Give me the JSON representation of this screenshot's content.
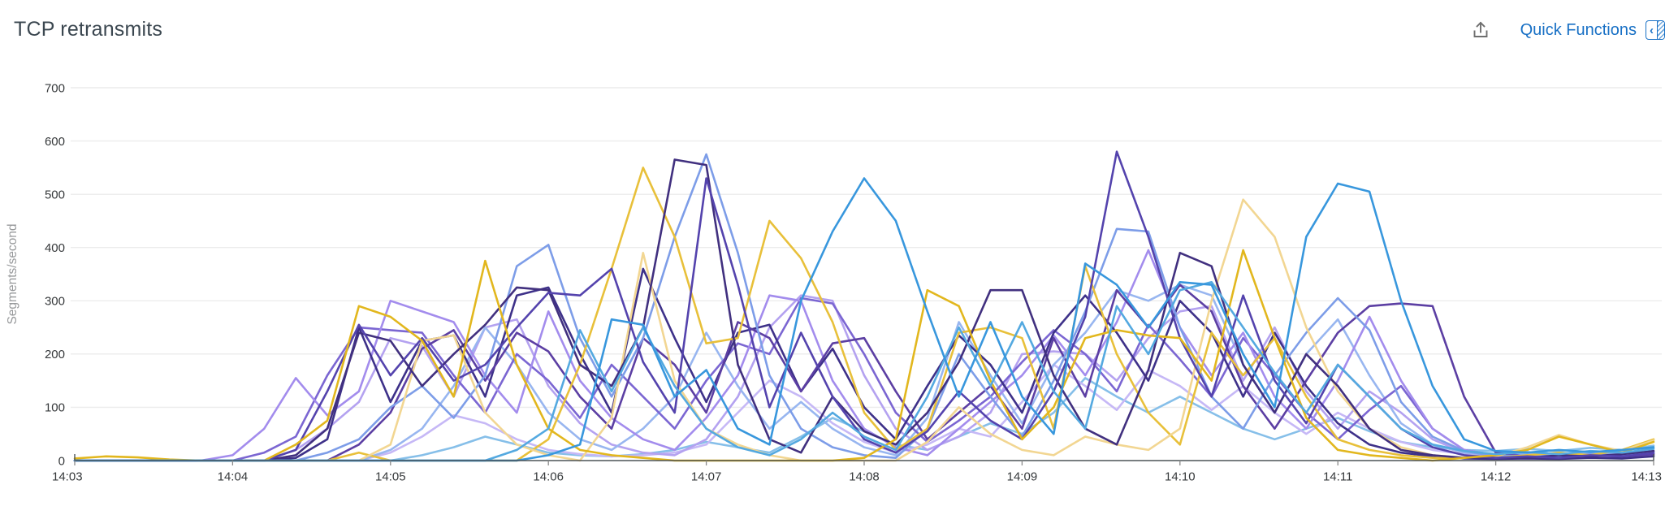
{
  "header": {
    "title": "TCP retransmits",
    "quick_functions_label": "Quick Functions"
  },
  "colors": {
    "accent_blue": "#1870c5",
    "title_text": "#3b4750",
    "tick_text": "#36393b",
    "axis_label_text": "#97999b",
    "gridline": "#ececec",
    "axis_line": "#4c5356",
    "export_icon": "#6e6e6e"
  },
  "chart_data": {
    "type": "line",
    "title": "TCP retransmits",
    "xlabel": "",
    "ylabel": "Segments/second",
    "ylim": [
      0,
      700
    ],
    "y_ticks": [
      0,
      100,
      200,
      300,
      400,
      500,
      600,
      700
    ],
    "x_tick_labels": [
      "14:03",
      "14:04",
      "14:05",
      "14:06",
      "14:07",
      "14:08",
      "14:09",
      "14:10",
      "14:11",
      "14:12",
      "14:13"
    ],
    "x_tick_minutes": [
      0,
      1,
      2,
      3,
      4,
      5,
      6,
      7,
      8,
      9,
      10
    ],
    "x_range_minutes": [
      0,
      10
    ],
    "x_step_minutes": 0.2,
    "grid": "horizontal",
    "legend_position": "none",
    "unit": "Segments/second",
    "series": [
      {
        "id": "sky-blue",
        "color": "#86bfe9",
        "values": [
          0,
          0,
          0,
          0,
          0,
          0,
          0,
          0,
          0,
          0,
          0,
          10,
          25,
          45,
          30,
          15,
          10,
          8,
          12,
          20,
          35,
          25,
          15,
          45,
          80,
          55,
          30,
          20,
          45,
          70,
          50,
          90,
          155,
          120,
          90,
          120,
          90,
          60,
          40,
          60,
          80,
          55,
          35,
          25,
          20,
          18,
          22,
          18,
          24,
          20,
          28
        ]
      },
      {
        "id": "lavender-pale",
        "color": "#c6b8f6",
        "values": [
          0,
          0,
          0,
          0,
          0,
          0,
          0,
          0,
          0,
          0,
          15,
          45,
          85,
          70,
          40,
          20,
          12,
          8,
          10,
          15,
          30,
          90,
          150,
          120,
          70,
          35,
          15,
          30,
          60,
          45,
          110,
          180,
          140,
          95,
          170,
          140,
          95,
          140,
          90,
          50,
          90,
          60,
          35,
          20,
          12,
          8,
          10,
          8,
          12,
          10,
          14
        ]
      },
      {
        "id": "lavender-light",
        "color": "#b4a2f0",
        "values": [
          0,
          0,
          0,
          0,
          0,
          0,
          0,
          20,
          60,
          110,
          230,
          215,
          120,
          250,
          265,
          140,
          70,
          30,
          15,
          10,
          40,
          120,
          250,
          310,
          300,
          160,
          60,
          20,
          45,
          90,
          200,
          205,
          200,
          150,
          230,
          280,
          290,
          150,
          250,
          130,
          60,
          130,
          90,
          40,
          15,
          8,
          6,
          5,
          8,
          6,
          9
        ]
      },
      {
        "id": "cornflower-light",
        "color": "#98b6f0",
        "values": [
          0,
          0,
          0,
          0,
          0,
          0,
          0,
          0,
          0,
          0,
          20,
          60,
          140,
          250,
          180,
          90,
          40,
          20,
          60,
          120,
          240,
          140,
          60,
          110,
          60,
          25,
          10,
          80,
          260,
          160,
          70,
          180,
          240,
          320,
          300,
          330,
          310,
          180,
          90,
          200,
          265,
          160,
          70,
          30,
          15,
          10,
          12,
          10,
          14,
          12,
          18
        ]
      },
      {
        "id": "purple-mid",
        "color": "#7b66d2",
        "values": [
          0,
          0,
          0,
          0,
          0,
          0,
          15,
          45,
          160,
          250,
          245,
          240,
          160,
          90,
          200,
          150,
          80,
          180,
          120,
          60,
          150,
          220,
          200,
          305,
          295,
          200,
          90,
          35,
          75,
          120,
          185,
          245,
          200,
          130,
          255,
          190,
          120,
          230,
          160,
          90,
          40,
          95,
          140,
          60,
          20,
          10,
          8,
          6,
          8,
          6,
          10
        ]
      },
      {
        "id": "lavender",
        "color": "#a38ced",
        "values": [
          0,
          0,
          0,
          0,
          0,
          10,
          60,
          155,
          85,
          130,
          300,
          280,
          260,
          160,
          90,
          280,
          150,
          80,
          40,
          20,
          80,
          160,
          310,
          300,
          150,
          60,
          25,
          10,
          60,
          110,
          160,
          235,
          160,
          260,
          395,
          250,
          160,
          240,
          120,
          60,
          150,
          270,
          150,
          60,
          20,
          10,
          6,
          8,
          6,
          10,
          12
        ]
      },
      {
        "id": "indigo-deep",
        "color": "#3e3189",
        "values": [
          0,
          0,
          0,
          0,
          0,
          0,
          0,
          5,
          40,
          250,
          110,
          225,
          235,
          120,
          310,
          325,
          200,
          90,
          360,
          230,
          110,
          240,
          255,
          130,
          210,
          100,
          40,
          140,
          235,
          180,
          90,
          240,
          310,
          240,
          150,
          300,
          240,
          120,
          240,
          140,
          70,
          30,
          15,
          8,
          4,
          3,
          4,
          3,
          5,
          4,
          8
        ]
      },
      {
        "id": "indigo-violet",
        "color": "#5c3fa3",
        "values": [
          0,
          0,
          0,
          0,
          0,
          0,
          0,
          0,
          0,
          30,
          90,
          210,
          245,
          150,
          240,
          205,
          120,
          60,
          230,
          180,
          90,
          260,
          230,
          130,
          220,
          230,
          130,
          40,
          90,
          140,
          60,
          230,
          120,
          320,
          250,
          330,
          280,
          140,
          60,
          150,
          240,
          290,
          295,
          290,
          120,
          15,
          8,
          6,
          10,
          8,
          12
        ]
      },
      {
        "id": "cornflower",
        "color": "#7d9de8",
        "values": [
          0,
          0,
          0,
          0,
          0,
          0,
          0,
          0,
          15,
          40,
          100,
          140,
          80,
          160,
          365,
          405,
          230,
          120,
          230,
          420,
          575,
          390,
          160,
          60,
          25,
          10,
          5,
          60,
          200,
          120,
          45,
          150,
          280,
          435,
          430,
          250,
          120,
          60,
          160,
          240,
          305,
          245,
          110,
          45,
          18,
          8,
          10,
          8,
          12,
          10,
          16
        ]
      },
      {
        "id": "gold-2",
        "color": "#e8c03a",
        "values": [
          0,
          0,
          0,
          0,
          0,
          0,
          0,
          0,
          0,
          15,
          0,
          0,
          0,
          0,
          0,
          40,
          180,
          360,
          550,
          420,
          220,
          230,
          450,
          380,
          260,
          90,
          20,
          60,
          240,
          250,
          230,
          60,
          365,
          200,
          90,
          30,
          240,
          160,
          230,
          120,
          40,
          20,
          10,
          5,
          5,
          5,
          10,
          15,
          10,
          20,
          40
        ]
      },
      {
        "id": "gold-pale",
        "color": "#f2d692",
        "values": [
          0,
          0,
          0,
          0,
          0,
          0,
          0,
          0,
          0,
          0,
          30,
          225,
          235,
          90,
          30,
          10,
          0,
          80,
          390,
          150,
          60,
          30,
          10,
          0,
          0,
          0,
          0,
          35,
          100,
          50,
          20,
          10,
          45,
          30,
          20,
          60,
          300,
          490,
          420,
          250,
          130,
          60,
          25,
          10,
          5,
          8,
          25,
          48,
          30,
          18,
          38
        ]
      },
      {
        "id": "indigo-dark",
        "color": "#41307f",
        "values": [
          0,
          0,
          0,
          0,
          0,
          0,
          0,
          10,
          60,
          240,
          225,
          140,
          200,
          255,
          325,
          320,
          180,
          140,
          250,
          565,
          555,
          180,
          40,
          15,
          120,
          55,
          30,
          90,
          185,
          320,
          320,
          160,
          60,
          30,
          170,
          390,
          365,
          180,
          90,
          200,
          140,
          60,
          20,
          10,
          5,
          5,
          5,
          10,
          8,
          12,
          18
        ]
      },
      {
        "id": "indigo",
        "color": "#5443ad",
        "values": [
          0,
          0,
          0,
          0,
          0,
          0,
          0,
          20,
          130,
          255,
          160,
          230,
          150,
          180,
          250,
          315,
          310,
          360,
          185,
          90,
          530,
          330,
          100,
          240,
          120,
          40,
          15,
          55,
          130,
          75,
          40,
          130,
          270,
          580,
          420,
          230,
          120,
          310,
          150,
          70,
          180,
          120,
          60,
          25,
          10,
          5,
          8,
          5,
          10,
          8,
          14
        ]
      },
      {
        "id": "gold-1",
        "color": "#e2b71e",
        "values": [
          4,
          8,
          6,
          2,
          0,
          0,
          0,
          30,
          75,
          290,
          270,
          225,
          120,
          375,
          180,
          60,
          20,
          10,
          5,
          0,
          0,
          0,
          0,
          0,
          0,
          5,
          40,
          320,
          290,
          150,
          40,
          100,
          230,
          245,
          235,
          230,
          150,
          395,
          230,
          80,
          20,
          10,
          5,
          0,
          5,
          10,
          20,
          45,
          30,
          15,
          35
        ]
      },
      {
        "id": "blue-light",
        "color": "#54a9e0",
        "values": [
          0,
          0,
          0,
          0,
          0,
          0,
          0,
          0,
          0,
          0,
          0,
          0,
          0,
          0,
          20,
          60,
          245,
          130,
          250,
          140,
          60,
          25,
          10,
          40,
          90,
          45,
          20,
          120,
          250,
          140,
          260,
          130,
          60,
          290,
          200,
          320,
          335,
          250,
          165,
          90,
          180,
          120,
          60,
          30,
          18,
          12,
          16,
          12,
          18,
          15,
          22
        ]
      },
      {
        "id": "blue-bright",
        "color": "#3897dd",
        "values": [
          0,
          0,
          0,
          0,
          0,
          0,
          0,
          0,
          0,
          0,
          0,
          0,
          0,
          0,
          0,
          10,
          30,
          265,
          255,
          120,
          170,
          60,
          30,
          300,
          430,
          530,
          450,
          280,
          120,
          260,
          120,
          50,
          370,
          330,
          250,
          335,
          330,
          200,
          100,
          420,
          520,
          505,
          300,
          140,
          40,
          18,
          15,
          20,
          16,
          20,
          25
        ]
      }
    ]
  }
}
